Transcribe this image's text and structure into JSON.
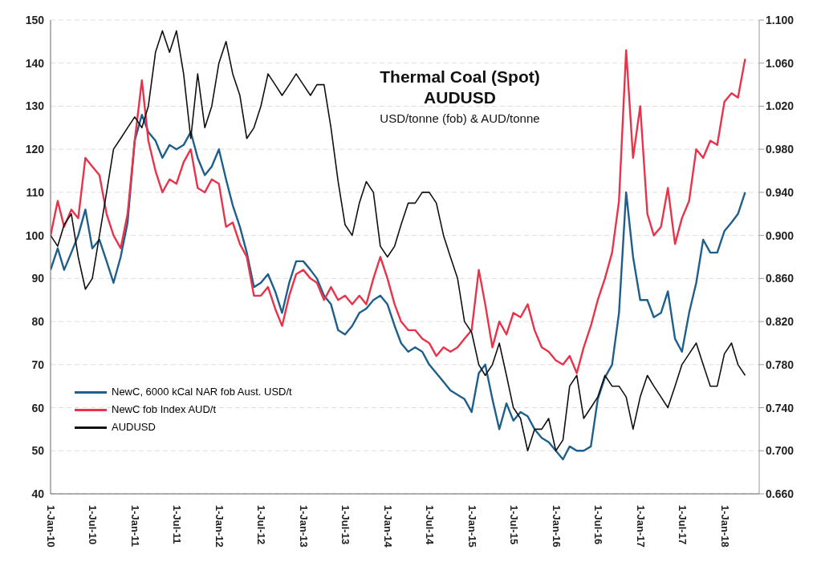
{
  "chart_data": {
    "type": "line",
    "title": "Thermal Coal (Spot)\nAUDUSD",
    "subtitle": "USD/tonne (fob) & AUD/tonne",
    "x": [
      "2010-01",
      "2010-02",
      "2010-03",
      "2010-04",
      "2010-05",
      "2010-06",
      "2010-07",
      "2010-08",
      "2010-09",
      "2010-10",
      "2010-11",
      "2010-12",
      "2011-01",
      "2011-02",
      "2011-03",
      "2011-04",
      "2011-05",
      "2011-06",
      "2011-07",
      "2011-08",
      "2011-09",
      "2011-10",
      "2011-11",
      "2011-12",
      "2012-01",
      "2012-02",
      "2012-03",
      "2012-04",
      "2012-05",
      "2012-06",
      "2012-07",
      "2012-08",
      "2012-09",
      "2012-10",
      "2012-11",
      "2012-12",
      "2013-01",
      "2013-02",
      "2013-03",
      "2013-04",
      "2013-05",
      "2013-06",
      "2013-07",
      "2013-08",
      "2013-09",
      "2013-10",
      "2013-11",
      "2013-12",
      "2014-01",
      "2014-02",
      "2014-03",
      "2014-04",
      "2014-05",
      "2014-06",
      "2014-07",
      "2014-08",
      "2014-09",
      "2014-10",
      "2014-11",
      "2014-12",
      "2015-01",
      "2015-02",
      "2015-03",
      "2015-04",
      "2015-05",
      "2015-06",
      "2015-07",
      "2015-08",
      "2015-09",
      "2015-10",
      "2015-11",
      "2015-12",
      "2016-01",
      "2016-02",
      "2016-03",
      "2016-04",
      "2016-05",
      "2016-06",
      "2016-07",
      "2016-08",
      "2016-09",
      "2016-10",
      "2016-11",
      "2016-12",
      "2017-01",
      "2017-02",
      "2017-03",
      "2017-04",
      "2017-05",
      "2017-06",
      "2017-07",
      "2017-08",
      "2017-09",
      "2017-10",
      "2017-11",
      "2017-12",
      "2018-01",
      "2018-02",
      "2018-03",
      "2018-04"
    ],
    "series": [
      {
        "name": "NewC, 6000 kCal NAR fob  Aust. USD/t",
        "color": "#1f5f8b",
        "values": [
          92,
          97,
          92,
          96,
          100,
          106,
          97,
          99,
          94,
          89,
          95,
          103,
          122,
          128,
          124,
          122,
          118,
          121,
          120,
          121,
          124,
          118,
          114,
          116,
          120,
          113,
          107,
          102,
          96,
          88,
          89,
          91,
          87,
          82,
          89,
          94,
          94,
          92,
          90,
          86,
          84,
          78,
          77,
          79,
          82,
          83,
          85,
          86,
          84,
          79,
          75,
          73,
          74,
          73,
          70,
          68,
          66,
          64,
          63,
          62,
          59,
          68,
          70,
          62,
          55,
          61,
          57,
          59,
          58,
          55,
          53,
          52,
          50,
          48,
          51,
          50,
          50,
          51,
          62,
          67,
          70,
          82,
          110,
          95,
          85,
          85,
          81,
          82,
          87,
          76,
          73,
          82,
          89,
          99,
          96,
          96,
          101,
          103,
          105,
          110
        ]
      },
      {
        "name": "NewC fob Index AUD/t",
        "color": "#e8334a",
        "values": [
          100,
          108,
          102,
          106,
          104,
          118,
          116,
          114,
          105,
          100,
          97,
          105,
          122,
          136,
          122,
          115,
          110,
          113,
          112,
          117,
          120,
          111,
          110,
          113,
          112,
          102,
          103,
          98,
          95,
          86,
          86,
          88,
          83,
          79,
          86,
          91,
          92,
          90,
          89,
          85,
          88,
          85,
          86,
          84,
          86,
          84,
          90,
          95,
          90,
          84,
          80,
          78,
          78,
          76,
          75,
          72,
          74,
          73,
          74,
          76,
          78,
          92,
          84,
          74,
          80,
          77,
          82,
          81,
          84,
          78,
          74,
          73,
          71,
          70,
          72,
          68,
          74,
          79,
          85,
          90,
          96,
          108,
          143,
          118,
          130,
          105,
          100,
          102,
          111,
          98,
          104,
          108,
          120,
          118,
          122,
          121,
          131,
          133,
          132,
          141
        ]
      },
      {
        "name": "AUDUSD",
        "color": "#111111",
        "axis": "y2",
        "values": [
          0.9,
          0.89,
          0.91,
          0.92,
          0.88,
          0.85,
          0.86,
          0.9,
          0.94,
          0.98,
          0.99,
          1.0,
          1.01,
          1.0,
          1.02,
          1.07,
          1.09,
          1.07,
          1.09,
          1.05,
          0.99,
          1.05,
          1.0,
          1.02,
          1.06,
          1.08,
          1.05,
          1.03,
          0.99,
          1.0,
          1.02,
          1.05,
          1.04,
          1.03,
          1.04,
          1.05,
          1.04,
          1.03,
          1.04,
          1.04,
          1.0,
          0.95,
          0.91,
          0.9,
          0.93,
          0.95,
          0.94,
          0.89,
          0.88,
          0.89,
          0.91,
          0.93,
          0.93,
          0.94,
          0.94,
          0.93,
          0.9,
          0.88,
          0.86,
          0.82,
          0.81,
          0.78,
          0.77,
          0.78,
          0.8,
          0.77,
          0.74,
          0.73,
          0.7,
          0.72,
          0.72,
          0.73,
          0.7,
          0.71,
          0.76,
          0.77,
          0.73,
          0.74,
          0.75,
          0.77,
          0.76,
          0.76,
          0.75,
          0.72,
          0.75,
          0.77,
          0.76,
          0.75,
          0.74,
          0.76,
          0.78,
          0.79,
          0.8,
          0.78,
          0.76,
          0.76,
          0.79,
          0.8,
          0.78,
          0.77
        ]
      }
    ],
    "xlim": [
      "2010-01-01",
      "2018-06-01"
    ],
    "xticks": [
      {
        "value": "2010-01-01",
        "label": "1-Jan-10"
      },
      {
        "value": "2010-07-01",
        "label": "1-Jul-10"
      },
      {
        "value": "2011-01-01",
        "label": "1-Jan-11"
      },
      {
        "value": "2011-07-01",
        "label": "1-Jul-11"
      },
      {
        "value": "2012-01-01",
        "label": "1-Jan-12"
      },
      {
        "value": "2012-07-01",
        "label": "1-Jul-12"
      },
      {
        "value": "2013-01-01",
        "label": "1-Jan-13"
      },
      {
        "value": "2013-07-01",
        "label": "1-Jul-13"
      },
      {
        "value": "2014-01-01",
        "label": "1-Jan-14"
      },
      {
        "value": "2014-07-01",
        "label": "1-Jul-14"
      },
      {
        "value": "2015-01-01",
        "label": "1-Jan-15"
      },
      {
        "value": "2015-07-01",
        "label": "1-Jul-15"
      },
      {
        "value": "2016-01-01",
        "label": "1-Jan-16"
      },
      {
        "value": "2016-07-01",
        "label": "1-Jul-16"
      },
      {
        "value": "2017-01-01",
        "label": "1-Jan-17"
      },
      {
        "value": "2017-07-01",
        "label": "1-Jul-17"
      },
      {
        "value": "2018-01-01",
        "label": "1-Jan-18"
      }
    ],
    "ylim": [
      40,
      150
    ],
    "yticks": [
      40,
      50,
      60,
      70,
      80,
      90,
      100,
      110,
      120,
      130,
      140,
      150
    ],
    "y2lim": [
      0.66,
      1.1
    ],
    "y2ticks": [
      {
        "value": 0.66,
        "label": "0.660"
      },
      {
        "value": 0.7,
        "label": "0.700"
      },
      {
        "value": 0.74,
        "label": "0.740"
      },
      {
        "value": 0.78,
        "label": "0.780"
      },
      {
        "value": 0.82,
        "label": "0.820"
      },
      {
        "value": 0.86,
        "label": "0.860"
      },
      {
        "value": 0.9,
        "label": "0.900"
      },
      {
        "value": 0.94,
        "label": "0.940"
      },
      {
        "value": 0.98,
        "label": "0.980"
      },
      {
        "value": 1.02,
        "label": "1.020"
      },
      {
        "value": 1.06,
        "label": "1.060"
      },
      {
        "value": 1.1,
        "label": "1.100"
      }
    ],
    "grid": "y",
    "legend": "bottom left",
    "marker": "none",
    "line_style": "solid"
  }
}
